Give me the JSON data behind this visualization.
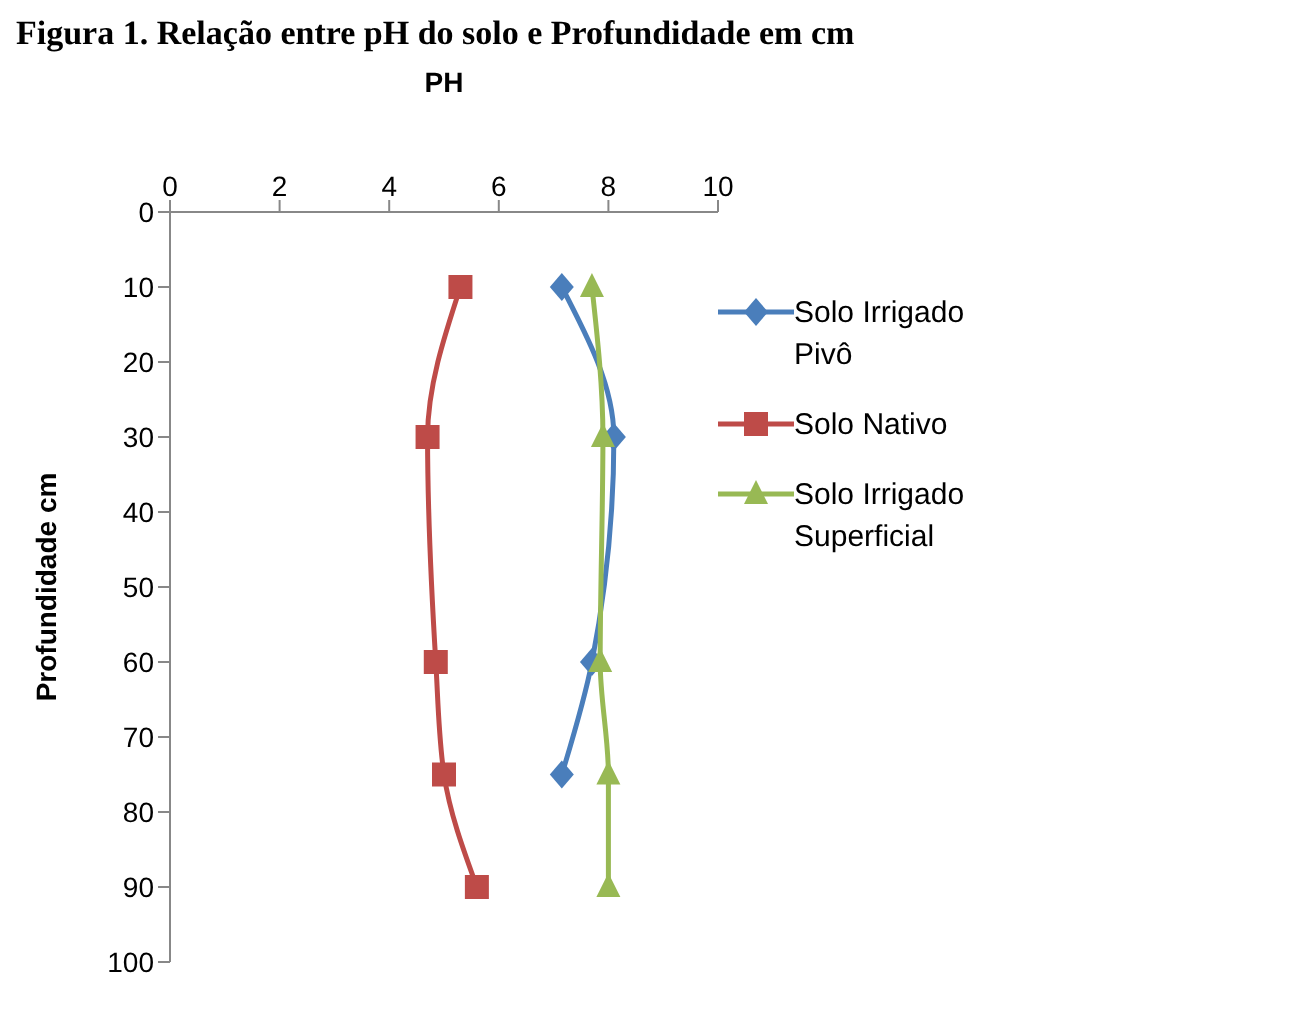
{
  "chart_data": {
    "type": "line",
    "title": "Figura 1. Relação entre pH do solo e Profundidade em cm",
    "xlabel": "PH",
    "ylabel": "Profundidade cm",
    "series": [
      {
        "name": "Solo Irrigado Pivô",
        "color": "#4a7ebb",
        "marker": "diamond",
        "x": [
          7.15,
          8.1,
          7.7,
          7.15
        ],
        "values": [
          10,
          30,
          60,
          75
        ]
      },
      {
        "name": "Solo Nativo",
        "color": "#be4b48",
        "marker": "square",
        "x": [
          5.3,
          4.7,
          4.85,
          5.0,
          5.6
        ],
        "values": [
          10,
          30,
          60,
          75,
          90
        ]
      },
      {
        "name": "Solo Irrigado Superficial",
        "color": "#98b954",
        "marker": "triangle",
        "x": [
          7.7,
          7.9,
          7.85,
          8.0,
          8.0
        ],
        "values": [
          10,
          30,
          60,
          75,
          90
        ]
      }
    ],
    "xlim": [
      0,
      10
    ],
    "xticks": [
      0,
      2,
      4,
      6,
      8,
      10
    ],
    "ylim": [
      100,
      0
    ],
    "yticks": [
      0,
      10,
      20,
      30,
      40,
      50,
      60,
      70,
      80,
      90,
      100
    ],
    "legend": "right",
    "line_style": "solid"
  }
}
